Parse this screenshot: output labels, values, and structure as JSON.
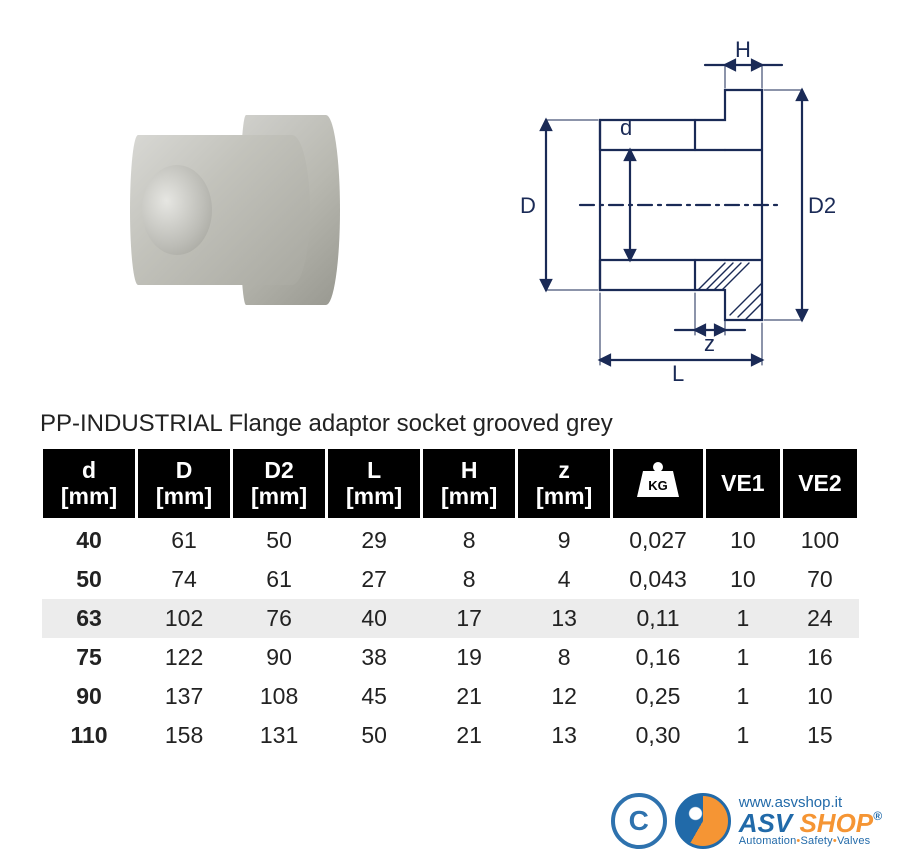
{
  "title": "PP-INDUSTRIAL Flange adaptor socket grooved grey",
  "diagram": {
    "labels": {
      "D": "D",
      "d": "d",
      "D2": "D2",
      "H": "H",
      "L": "L",
      "z": "z"
    },
    "stroke_color": "#1a2a56",
    "hatch_color": "#1a2a56",
    "line_width": 2.2
  },
  "table": {
    "headers": [
      {
        "line1": "d",
        "line2": "[mm]"
      },
      {
        "line1": "D",
        "line2": "[mm]"
      },
      {
        "line1": "D2",
        "line2": "[mm]"
      },
      {
        "line1": "L",
        "line2": "[mm]"
      },
      {
        "line1": "H",
        "line2": "[mm]"
      },
      {
        "line1": "z",
        "line2": "[mm]"
      },
      {
        "icon": "kg"
      },
      {
        "line1": "VE1"
      },
      {
        "line1": "VE2"
      }
    ],
    "rows": [
      {
        "cells": [
          "40",
          "61",
          "50",
          "29",
          "8",
          "9",
          "0,027",
          "10",
          "100"
        ],
        "shaded": false
      },
      {
        "cells": [
          "50",
          "74",
          "61",
          "27",
          "8",
          "4",
          "0,043",
          "10",
          "70"
        ],
        "shaded": false
      },
      {
        "cells": [
          "63",
          "102",
          "76",
          "40",
          "17",
          "13",
          "0,11",
          "1",
          "24"
        ],
        "shaded": true
      },
      {
        "cells": [
          "75",
          "122",
          "90",
          "38",
          "19",
          "8",
          "0,16",
          "1",
          "16"
        ],
        "shaded": false
      },
      {
        "cells": [
          "90",
          "137",
          "108",
          "45",
          "21",
          "12",
          "0,25",
          "1",
          "10"
        ],
        "shaded": false
      },
      {
        "cells": [
          "110",
          "158",
          "131",
          "50",
          "21",
          "13",
          "0,30",
          "1",
          "15"
        ],
        "shaded": false
      }
    ],
    "header_bg": "#000000",
    "header_fg": "#ffffff",
    "row_shade_bg": "#ececec",
    "font_size": 23
  },
  "watermark": {
    "copyright_symbol": "C",
    "url": "www.asvshop.it",
    "brand_part1": "ASV",
    "brand_part2": "SHOP",
    "reg": "®",
    "tagline_parts": [
      "Automation",
      "Safety",
      "Valves"
    ],
    "color_primary": "#0a5aa0",
    "color_accent": "#f58a1f"
  }
}
